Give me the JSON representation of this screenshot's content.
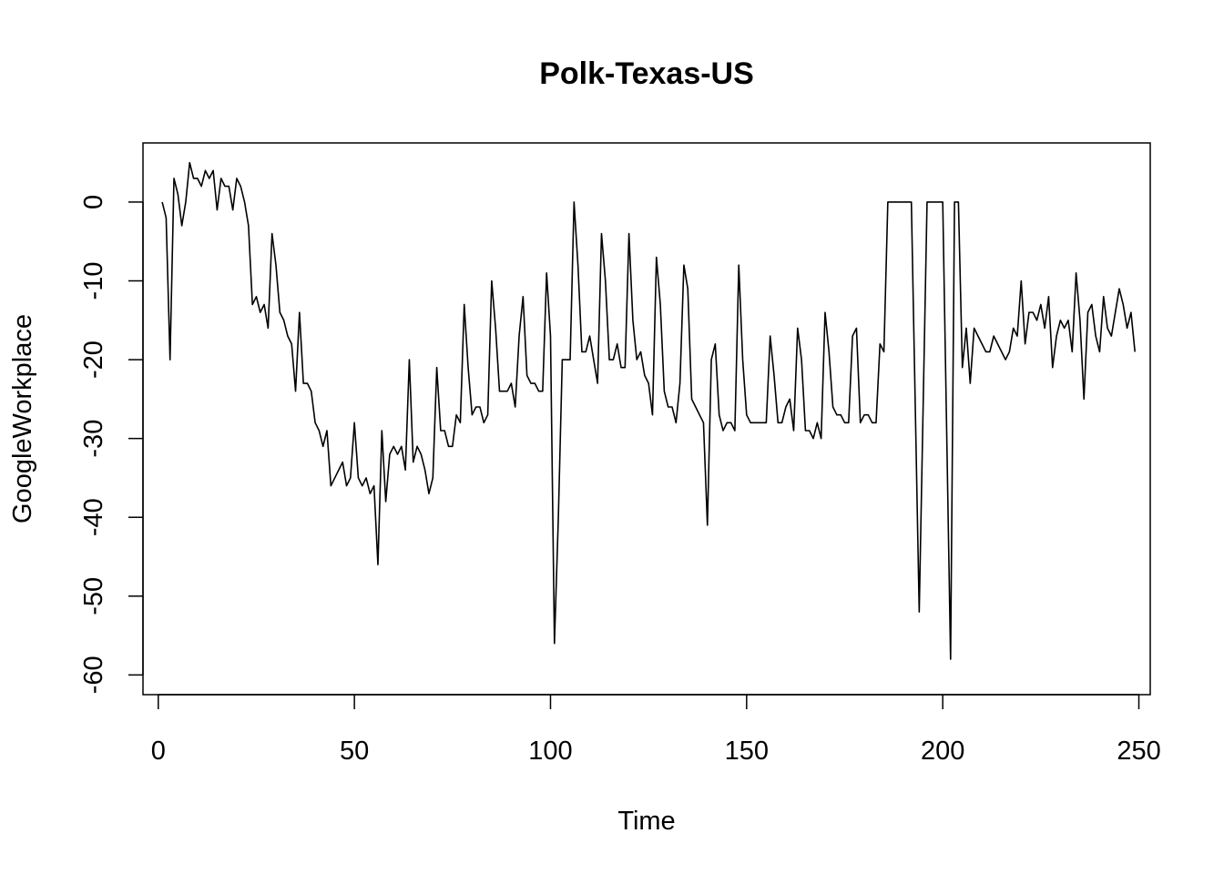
{
  "chart_data": {
    "type": "line",
    "title": "Polk-Texas-US",
    "xlabel": "Time",
    "ylabel": "GoogleWorkplace",
    "xlim": [
      1,
      248
    ],
    "ylim": [
      -60,
      5
    ],
    "x_ticks": [
      0,
      50,
      100,
      150,
      200,
      250
    ],
    "y_ticks": [
      0,
      -10,
      -20,
      -30,
      -40,
      -50,
      -60
    ],
    "grid": false,
    "legend": "none",
    "line_color": "#000000",
    "series": [
      {
        "values": [
          0,
          -2,
          -20,
          3,
          1,
          -3,
          0,
          5,
          3,
          3,
          2,
          4,
          3,
          4,
          -1,
          3,
          2,
          2,
          -1,
          3,
          2,
          0,
          -3,
          -13,
          -12,
          -14,
          -13,
          -16,
          -4,
          -8,
          -14,
          -15,
          -17,
          -18,
          -24,
          -14,
          -23,
          -23,
          -24,
          -28,
          -29,
          -31,
          -29,
          -36,
          -35,
          -34,
          -33,
          -36,
          -35,
          -28,
          -35,
          -36,
          -35,
          -37,
          -36,
          -46,
          -29,
          -38,
          -32,
          -31,
          -32,
          -31,
          -34,
          -20,
          -33,
          -31,
          -32,
          -34,
          -37,
          -35,
          -21,
          -29,
          -29,
          -31,
          -31,
          -27,
          -28,
          -13,
          -21,
          -27,
          -26,
          -26,
          -28,
          -27,
          -10,
          -16,
          -24,
          -24,
          -24,
          -23,
          -26,
          -17,
          -12,
          -22,
          -23,
          -23,
          -24,
          -24,
          -9,
          -17,
          -56,
          -40,
          -20,
          -20,
          -20,
          0,
          -8,
          -19,
          -19,
          -17,
          -20,
          -23,
          -4,
          -10,
          -20,
          -20,
          -18,
          -21,
          -21,
          -4,
          -15,
          -20,
          -19,
          -22,
          -23,
          -27,
          -7,
          -13,
          -24,
          -26,
          -26,
          -28,
          -23,
          -8,
          -11,
          -25,
          -26,
          -27,
          -28,
          -41,
          -20,
          -18,
          -27,
          -29,
          -28,
          -28,
          -29,
          -8,
          -20,
          -27,
          -28,
          -28,
          -28,
          -28,
          -28,
          -17,
          -22,
          -28,
          -28,
          -26,
          -25,
          -29,
          -16,
          -20,
          -29,
          -29,
          -30,
          -28,
          -30,
          -14,
          -19,
          -26,
          -27,
          -27,
          -28,
          -28,
          -17,
          -16,
          -28,
          -27,
          -27,
          -28,
          -28,
          -18,
          -19,
          0,
          0,
          0,
          0,
          0,
          0,
          0,
          -26,
          -52,
          -26,
          0,
          0,
          0,
          0,
          0,
          -29,
          -58,
          0,
          0,
          -21,
          -16,
          -23,
          -16,
          -17,
          -18,
          -19,
          -19,
          -17,
          -18,
          -19,
          -20,
          -19,
          -16,
          -17,
          -10,
          -18,
          -14,
          -14,
          -15,
          -13,
          -16,
          -12,
          -21,
          -17,
          -15,
          -16,
          -15,
          -19,
          -9,
          -15,
          -25,
          -14,
          -13,
          -17,
          -19,
          -12,
          -16,
          -17,
          -14,
          -11,
          -13,
          -16,
          -14,
          -19
        ]
      }
    ]
  }
}
